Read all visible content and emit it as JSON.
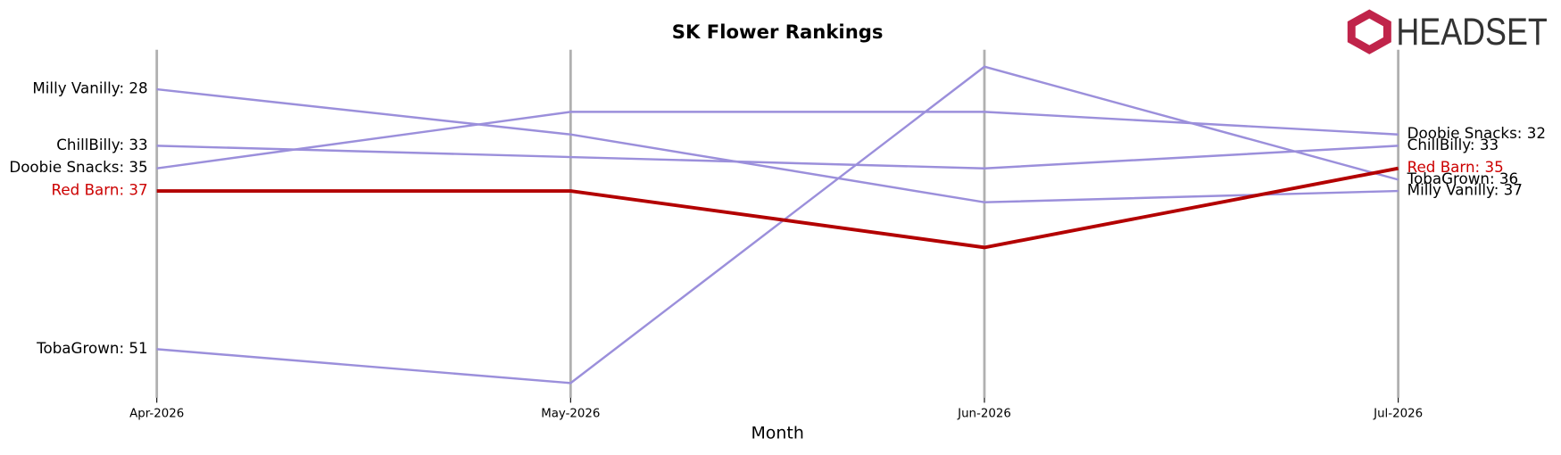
{
  "logo": "HEADSET",
  "chart_data": {
    "type": "line",
    "title": "SK Flower Rankings",
    "x_label": "Month",
    "categories": [
      "Apr-2026",
      "May-2026",
      "Jun-2026",
      "Jul-2026"
    ],
    "ylim": [
      55.3,
      24.5
    ],
    "series": [
      {
        "name": "Milly Vanilly",
        "color": "#9b8fdb",
        "label_color": "#000000",
        "values": [
          28,
          32,
          38,
          37
        ],
        "value_labels": [
          "Milly Vanilly: 28",
          null,
          null,
          "Milly Vanilly: 37"
        ]
      },
      {
        "name": "ChillBilly",
        "color": "#9b8fdb",
        "label_color": "#000000",
        "values": [
          33,
          34,
          35,
          33
        ],
        "value_labels": [
          "ChillBilly: 33",
          null,
          null,
          "ChillBilly: 33"
        ]
      },
      {
        "name": "Doobie Snacks",
        "color": "#9b8fdb",
        "label_color": "#000000",
        "values": [
          35,
          30,
          30,
          32
        ],
        "value_labels": [
          "Doobie Snacks: 35",
          null,
          null,
          "Doobie Snacks: 32"
        ]
      },
      {
        "name": "TobaGrown",
        "color": "#9b8fdb",
        "label_color": "#000000",
        "values": [
          51,
          54,
          26,
          36
        ],
        "value_labels": [
          "TobaGrown: 51",
          null,
          null,
          "TobaGrown: 36"
        ]
      },
      {
        "name": "Red Barn",
        "color": "#b30000",
        "label_color": "#cc0000",
        "values": [
          37,
          37,
          42,
          35
        ],
        "value_labels": [
          "Red Barn: 37",
          null,
          null,
          "Red Barn: 35"
        ]
      }
    ]
  }
}
